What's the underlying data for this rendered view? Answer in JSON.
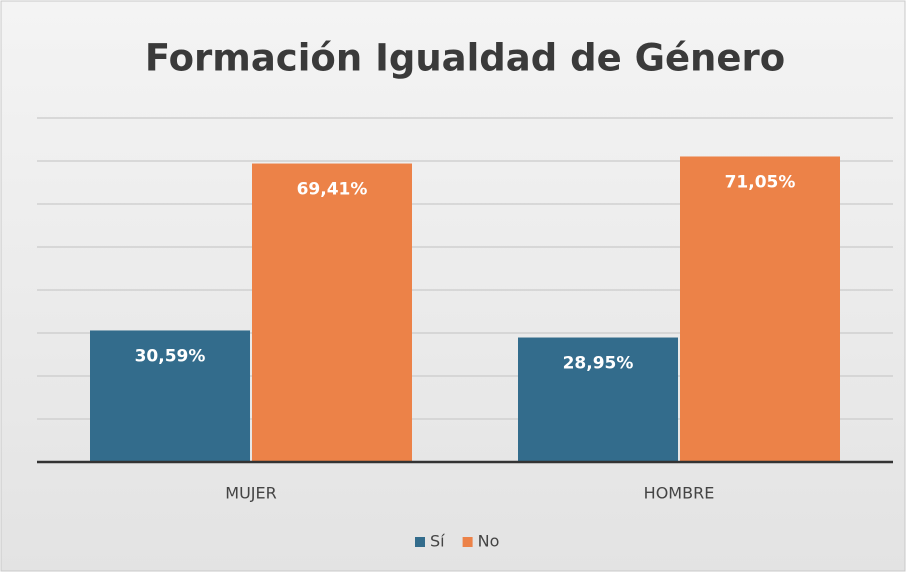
{
  "chart_data": {
    "type": "bar",
    "title": "Formación Igualdad de Género",
    "categories": [
      "MUJER",
      "HOMBRE"
    ],
    "series": [
      {
        "name": "Sí",
        "color": "#336c8c",
        "values": [
          30.59,
          28.95
        ],
        "value_labels": [
          "30,59%",
          "28,95%"
        ]
      },
      {
        "name": "No",
        "color": "#ec8248",
        "values": [
          69.41,
          71.05
        ],
        "value_labels": [
          "69,41%",
          "71,05%"
        ]
      }
    ],
    "ylim": [
      0,
      80
    ],
    "yticks": [
      0,
      10,
      20,
      30,
      40,
      50,
      60,
      70,
      80
    ],
    "grid": true,
    "legend": "bottom"
  }
}
